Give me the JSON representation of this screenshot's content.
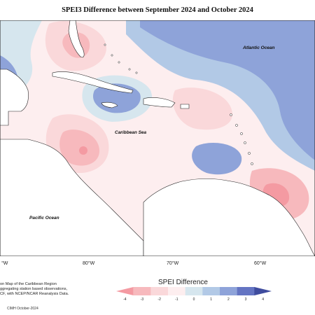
{
  "title": "SPEI3 Difference between September 2024 and October 2024",
  "labels": {
    "atlantic": "Atlantic Ocean",
    "caribbean": "Caribbean Sea",
    "pacific": "Pacific Ocean"
  },
  "longitudes": [
    "°W",
    "80°W",
    "70°W",
    "60°W"
  ],
  "notes": [
    "on Map of the Caribbean Region",
    "ggregating station based observations,",
    "CF, with NCEP/NCAR Reanalysis Data."
  ],
  "legend": {
    "title": "SPEI Difference",
    "ticks": [
      "-4",
      "-3",
      "-2",
      "-1",
      "0",
      "1",
      "2",
      "3",
      "4"
    ],
    "colors": [
      "#f49aa2",
      "#f7b9bd",
      "#fad8da",
      "#fdeeef",
      "#d6e6ee",
      "#b2c9e6",
      "#8ea3d9",
      "#6474c2",
      "#3f4c9e"
    ]
  },
  "credit": "CIMH October-2024"
}
